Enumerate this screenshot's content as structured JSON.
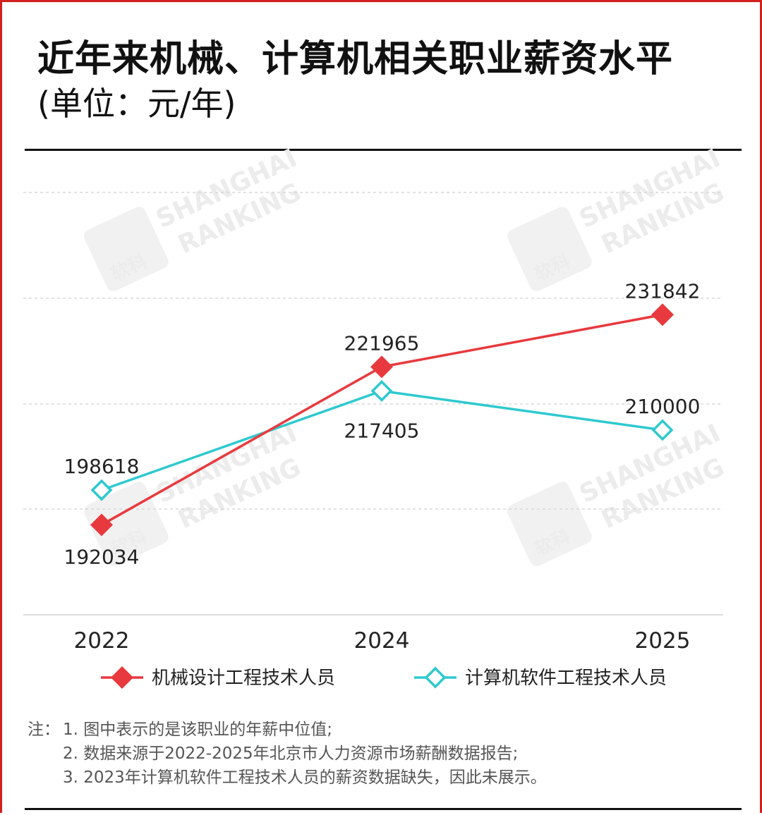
{
  "title": "近年来机械、计算机相关职业薪资水平",
  "subtitle": "(单位：元/年)",
  "watermark": {
    "line1": "SHANGHAI",
    "line2": "RANKING",
    "logo_text": "软科"
  },
  "notes": {
    "prefix": "注：",
    "items": [
      "1. 图中表示的是该职业的年薪中位值;",
      "2. 数据来源于2022-2025年北京市人力资源市场薪酬数据报告;",
      "3. 2023年计算机软件工程技术人员的薪资数据缺失，因此未展示。"
    ]
  },
  "chart_data": {
    "type": "line",
    "categories": [
      "2022",
      "2024",
      "2025"
    ],
    "series": [
      {
        "name": "机械设计工程技术人员",
        "values": [
          192034,
          221965,
          231842
        ],
        "color": "#e8393e",
        "marker": "diamond-filled"
      },
      {
        "name": "计算机软件工程技术人员",
        "values": [
          198618,
          217405,
          210000
        ],
        "color": "#2ec9cf",
        "marker": "diamond-hollow"
      }
    ],
    "ylim": [
      175000,
      255000
    ],
    "grid": true,
    "legend": "bottom"
  }
}
